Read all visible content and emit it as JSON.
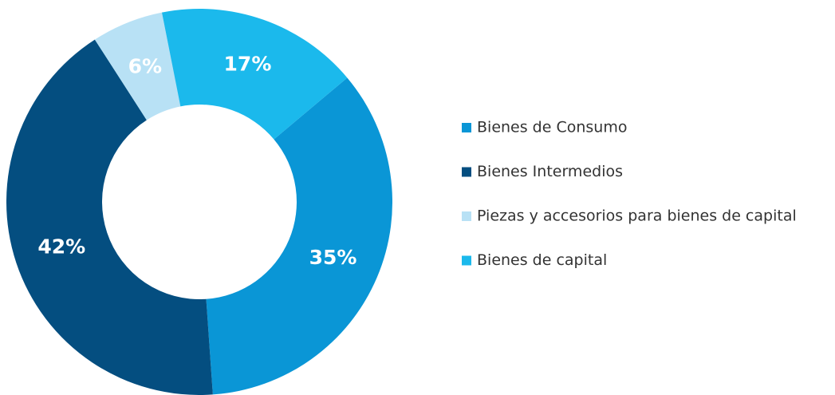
{
  "chart_data": {
    "type": "donut",
    "categories": [
      "Bienes de Consumo",
      "Bienes Intermedios",
      "Piezas y accesorios para bienes de capital",
      "Bienes de capital"
    ],
    "values": [
      35,
      42,
      6,
      17
    ],
    "value_labels": [
      "35%",
      "42%",
      "6%",
      "17%"
    ],
    "colors": [
      "#0a96d6",
      "#044e80",
      "#b8e1f5",
      "#1bb9ec"
    ],
    "legend": "right"
  }
}
